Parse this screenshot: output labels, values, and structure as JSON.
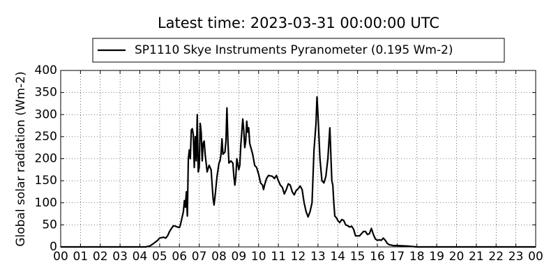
{
  "chart_data": {
    "type": "line",
    "title": "Latest time: 2023-03-31 00:00:00 UTC",
    "ylabel": "Global solar radiation (Wm-2)",
    "legend": "top",
    "grid": true,
    "xlim": [
      0,
      24
    ],
    "ylim": [
      0,
      400
    ],
    "yticks": [
      0,
      50,
      100,
      150,
      200,
      250,
      300,
      350,
      400
    ],
    "xticks": [
      {
        "value": 0,
        "label": "00"
      },
      {
        "value": 1,
        "label": "01"
      },
      {
        "value": 2,
        "label": "02"
      },
      {
        "value": 3,
        "label": "03"
      },
      {
        "value": 4,
        "label": "04"
      },
      {
        "value": 5,
        "label": "05"
      },
      {
        "value": 6,
        "label": "06"
      },
      {
        "value": 7,
        "label": "07"
      },
      {
        "value": 8,
        "label": "08"
      },
      {
        "value": 9,
        "label": "09"
      },
      {
        "value": 10,
        "label": "10"
      },
      {
        "value": 11,
        "label": "11"
      },
      {
        "value": 12,
        "label": "12"
      },
      {
        "value": 13,
        "label": "13"
      },
      {
        "value": 14,
        "label": "14"
      },
      {
        "value": 15,
        "label": "15"
      },
      {
        "value": 16,
        "label": "16"
      },
      {
        "value": 17,
        "label": "17"
      },
      {
        "value": 18,
        "label": "18"
      },
      {
        "value": 19,
        "label": "19"
      },
      {
        "value": 20,
        "label": "20"
      },
      {
        "value": 21,
        "label": "21"
      },
      {
        "value": 22,
        "label": "22"
      },
      {
        "value": 23,
        "label": "23"
      },
      {
        "value": 24,
        "label": "00"
      }
    ],
    "x": [
      0,
      4.3,
      4.5,
      4.7,
      4.9,
      5.0,
      5.2,
      5.3,
      5.4,
      5.5,
      5.6,
      5.7,
      5.8,
      5.9,
      6.0,
      6.05,
      6.1,
      6.2,
      6.25,
      6.3,
      6.35,
      6.4,
      6.45,
      6.5,
      6.55,
      6.6,
      6.65,
      6.7,
      6.75,
      6.8,
      6.85,
      6.9,
      6.95,
      7.0,
      7.05,
      7.1,
      7.15,
      7.2,
      7.25,
      7.3,
      7.4,
      7.5,
      7.6,
      7.7,
      7.75,
      7.8,
      7.9,
      8.0,
      8.05,
      8.1,
      8.15,
      8.2,
      8.3,
      8.35,
      8.4,
      8.45,
      8.5,
      8.6,
      8.7,
      8.75,
      8.8,
      8.85,
      8.9,
      9.0,
      9.05,
      9.1,
      9.2,
      9.25,
      9.3,
      9.35,
      9.4,
      9.45,
      9.5,
      9.55,
      9.7,
      9.8,
      9.9,
      10.0,
      10.1,
      10.2,
      10.25,
      10.3,
      10.4,
      10.5,
      10.7,
      10.8,
      10.9,
      11.0,
      11.1,
      11.2,
      11.3,
      11.4,
      11.5,
      11.6,
      11.7,
      11.8,
      11.9,
      12.0,
      12.1,
      12.2,
      12.3,
      12.4,
      12.5,
      12.6,
      12.7,
      12.8,
      12.85,
      12.9,
      12.95,
      13.0,
      13.1,
      13.2,
      13.3,
      13.4,
      13.5,
      13.6,
      13.65,
      13.7,
      13.75,
      13.8,
      13.85,
      13.95,
      14.0,
      14.1,
      14.2,
      14.3,
      14.4,
      14.5,
      14.6,
      14.7,
      14.8,
      14.9,
      15.1,
      15.2,
      15.3,
      15.4,
      15.5,
      15.6,
      15.7,
      15.8,
      15.9,
      16.0,
      16.1,
      16.2,
      16.3,
      16.4,
      16.5,
      16.6,
      16.8,
      17.0,
      17.5,
      18.0,
      24
    ],
    "series": [
      {
        "name": "SP1110 Skye Instruments Pyranometer (0.195 Wm-2)",
        "color": "#000000",
        "values": [
          0,
          0,
          2,
          8,
          15,
          20,
          22,
          20,
          25,
          35,
          42,
          48,
          47,
          45,
          44,
          50,
          60,
          80,
          105,
          90,
          125,
          70,
          200,
          220,
          200,
          265,
          268,
          255,
          180,
          250,
          195,
          300,
          170,
          180,
          280,
          260,
          195,
          235,
          240,
          210,
          170,
          185,
          175,
          110,
          95,
          115,
          160,
          190,
          195,
          210,
          245,
          210,
          215,
          240,
          315,
          240,
          190,
          195,
          190,
          160,
          140,
          160,
          200,
          175,
          185,
          230,
          290,
          265,
          225,
          240,
          285,
          260,
          270,
          235,
          210,
          185,
          180,
          165,
          145,
          140,
          130,
          140,
          155,
          162,
          160,
          155,
          162,
          150,
          140,
          135,
          120,
          130,
          143,
          140,
          125,
          118,
          128,
          132,
          138,
          130,
          100,
          80,
          68,
          80,
          100,
          220,
          250,
          280,
          340,
          300,
          200,
          150,
          145,
          160,
          200,
          270,
          210,
          150,
          140,
          100,
          70,
          65,
          60,
          55,
          62,
          60,
          50,
          48,
          45,
          47,
          40,
          25,
          25,
          30,
          35,
          35,
          28,
          30,
          42,
          28,
          18,
          15,
          16,
          15,
          20,
          15,
          8,
          5,
          3,
          3,
          2,
          0,
          0
        ]
      }
    ]
  }
}
